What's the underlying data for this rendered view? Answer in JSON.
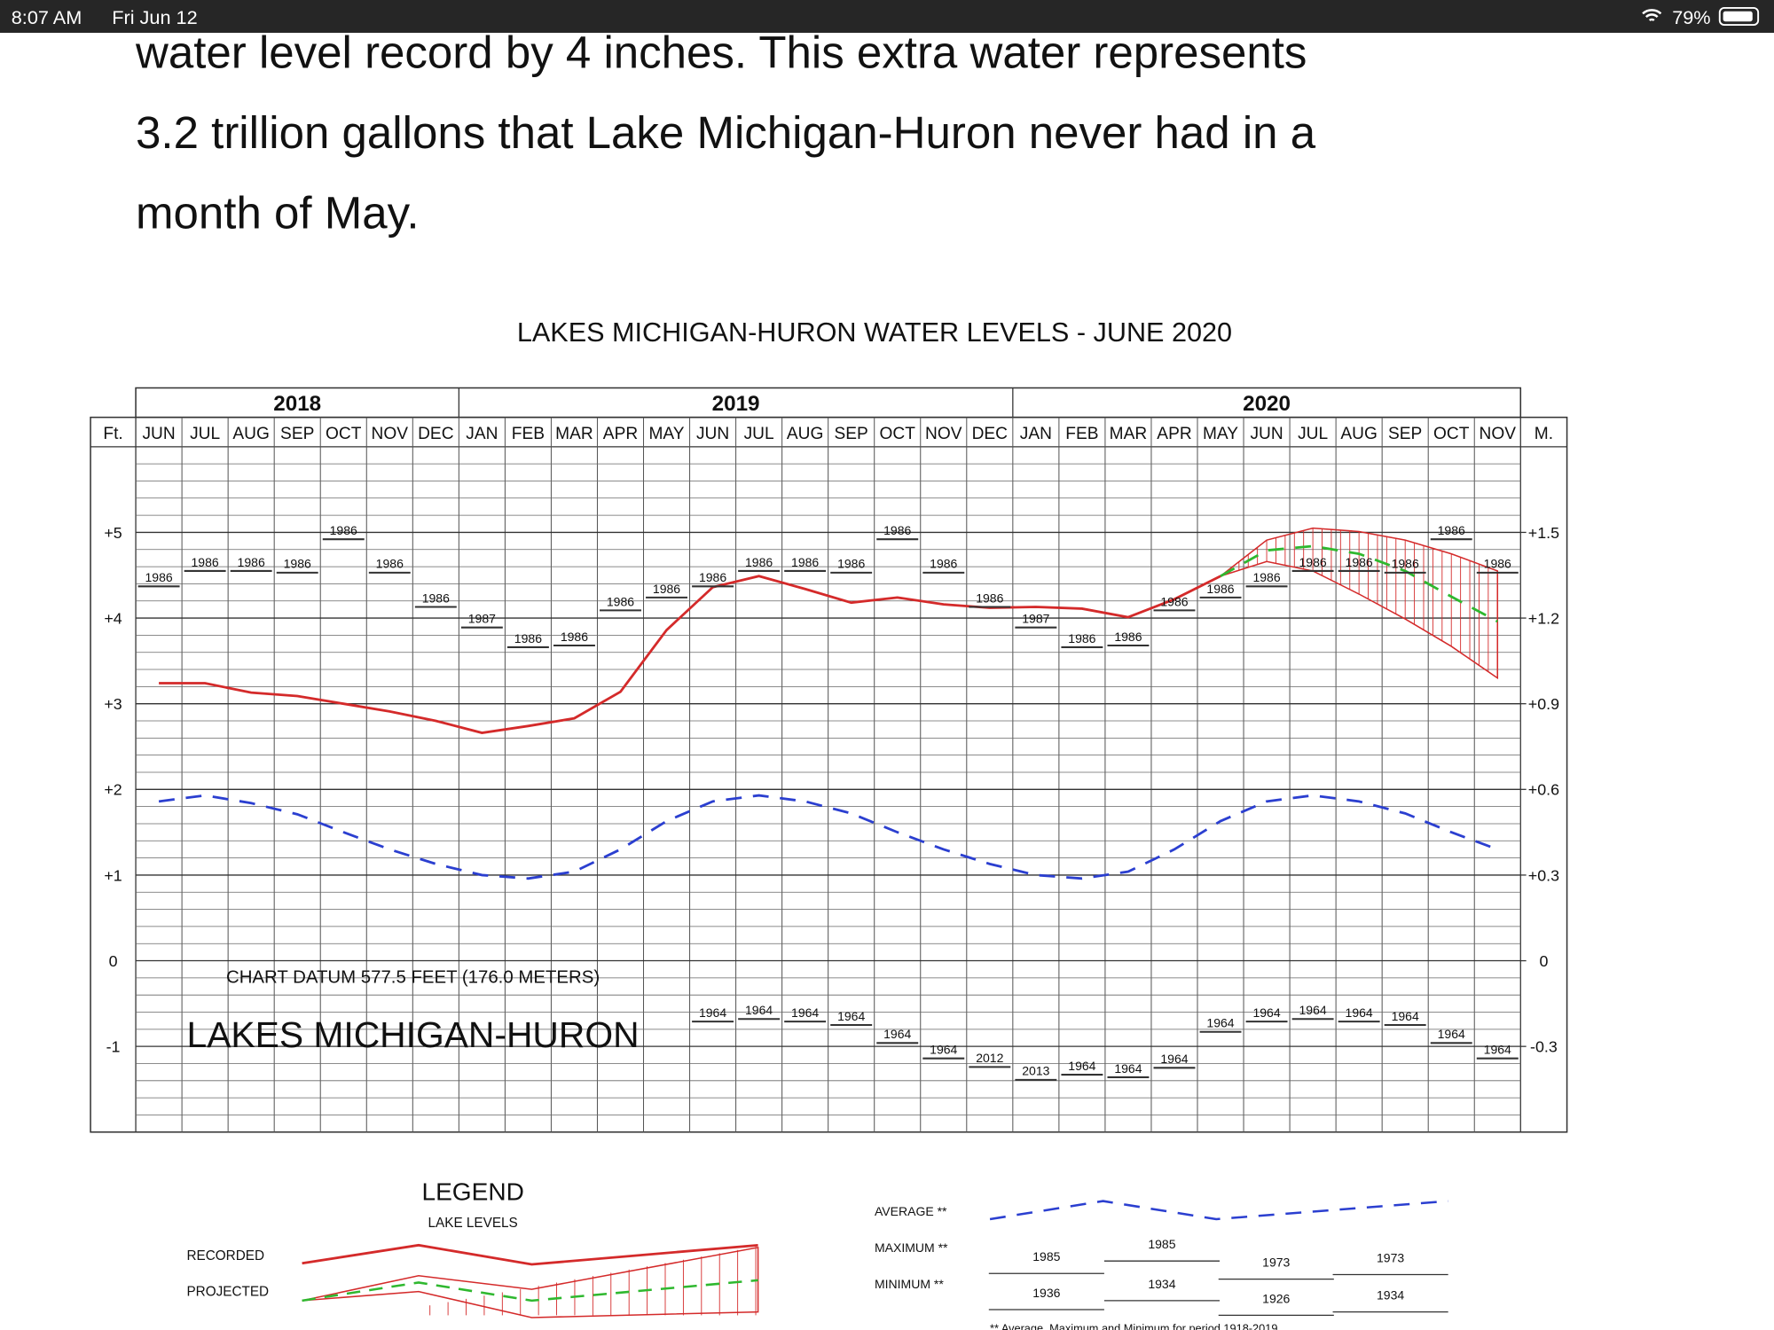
{
  "status_bar": {
    "time": "8:07 AM",
    "date": "Fri Jun 12",
    "battery": "79%"
  },
  "article": {
    "lines": [
      "water level record by 4 inches. This extra water represents",
      "3.2 trillion gallons that Lake Michigan-Huron never had in a",
      "month of May."
    ]
  },
  "chart_data": {
    "type": "line",
    "title": "LAKES MICHIGAN-HURON WATER LEVELS - JUNE 2020",
    "years": [
      {
        "label": "2018",
        "months": 7
      },
      {
        "label": "2019",
        "months": 12
      },
      {
        "label": "2020",
        "months": 11
      }
    ],
    "categories": [
      "JUN",
      "JUL",
      "AUG",
      "SEP",
      "OCT",
      "NOV",
      "DEC",
      "JAN",
      "FEB",
      "MAR",
      "APR",
      "MAY",
      "JUN",
      "JUL",
      "AUG",
      "SEP",
      "OCT",
      "NOV",
      "DEC",
      "JAN",
      "FEB",
      "MAR",
      "APR",
      "MAY",
      "JUN",
      "JUL",
      "AUG",
      "SEP",
      "OCT",
      "NOV"
    ],
    "y_label": "Ft.",
    "y2_label": "M.",
    "ylim": [
      -2,
      6
    ],
    "yticks": [
      {
        "value": 5,
        "label": "+5"
      },
      {
        "value": 4,
        "label": "+4"
      },
      {
        "value": 3,
        "label": "+3"
      },
      {
        "value": 2,
        "label": "+2"
      },
      {
        "value": 1,
        "label": "+1"
      },
      0,
      -1
    ],
    "y2lim": [
      -0.6096,
      1.8288
    ],
    "y2ticks": [
      {
        "value": 1.524,
        "label": "+1.5"
      },
      {
        "value": 1.2192,
        "label": "+1.2"
      },
      {
        "value": 0.9144,
        "label": "+0.9"
      },
      {
        "value": 0.6096,
        "label": "+0.6"
      },
      {
        "value": 0.3048,
        "label": "+0.3"
      },
      0,
      {
        "value": -0.3048,
        "label": "-0.3"
      }
    ],
    "grid": true,
    "annotations": [
      "CHART DATUM 577.5 FEET (176.0 METERS)",
      "LAKES MICHIGAN-HURON"
    ],
    "series": [
      {
        "name": "RECORDED",
        "color": "#d42a2a",
        "dash": false,
        "values": [
          3.24,
          3.24,
          3.13,
          3.09,
          3.0,
          2.91,
          2.8,
          2.66,
          2.74,
          2.83,
          3.14,
          3.86,
          4.36,
          4.49,
          4.34,
          4.18,
          4.24,
          4.16,
          4.12,
          4.13,
          4.11,
          4.01,
          4.22,
          4.49,
          null,
          null,
          null,
          null,
          null,
          null
        ]
      },
      {
        "name": "PROJECTED",
        "color": "#2fb82f",
        "dash": true,
        "values": [
          null,
          null,
          null,
          null,
          null,
          null,
          null,
          null,
          null,
          null,
          null,
          null,
          null,
          null,
          null,
          null,
          null,
          null,
          null,
          null,
          null,
          null,
          null,
          4.49,
          4.79,
          4.84,
          4.75,
          4.55,
          4.25,
          3.96
        ],
        "range_color": "#d42a2a",
        "range_high": [
          null,
          null,
          null,
          null,
          null,
          null,
          null,
          null,
          null,
          null,
          null,
          null,
          null,
          null,
          null,
          null,
          null,
          null,
          null,
          null,
          null,
          null,
          null,
          4.49,
          4.91,
          5.05,
          5.01,
          4.91,
          4.75,
          4.55
        ],
        "range_low": [
          null,
          null,
          null,
          null,
          null,
          null,
          null,
          null,
          null,
          null,
          null,
          null,
          null,
          null,
          null,
          null,
          null,
          null,
          null,
          null,
          null,
          null,
          null,
          4.49,
          4.66,
          4.55,
          4.28,
          3.99,
          3.67,
          3.3
        ]
      },
      {
        "name": "AVERAGE **",
        "color": "#2b3fd0",
        "dash": true,
        "values": [
          1.86,
          1.93,
          1.84,
          1.71,
          1.5,
          1.3,
          1.13,
          1.0,
          0.96,
          1.04,
          1.3,
          1.63,
          1.86,
          1.93,
          1.86,
          1.72,
          1.5,
          1.3,
          1.13,
          1.0,
          0.96,
          1.04,
          1.3,
          1.63,
          1.86,
          1.93,
          1.86,
          1.72,
          1.5,
          1.3
        ]
      },
      {
        "name": "MAXIMUM **",
        "color": "#333333",
        "marker": "record",
        "values": [
          4.37,
          4.55,
          4.55,
          4.53,
          4.92,
          4.53,
          4.13,
          3.89,
          3.66,
          3.68,
          4.09,
          4.24,
          4.37,
          4.55,
          4.55,
          4.53,
          4.92,
          4.53,
          4.13,
          3.89,
          3.66,
          3.68,
          4.09,
          4.24,
          4.37,
          4.55,
          4.55,
          4.53,
          4.92,
          4.53
        ],
        "years": [
          "1986",
          "1986",
          "1986",
          "1986",
          "1986",
          "1986",
          "1986",
          "1987",
          "1986",
          "1986",
          "1986",
          "1986",
          "1986",
          "1986",
          "1986",
          "1986",
          "1986",
          "1986",
          "1986",
          "1987",
          "1986",
          "1986",
          "1986",
          "1986",
          "1986",
          "1986",
          "1986",
          "1986",
          "1986",
          "1986"
        ]
      },
      {
        "name": "MINIMUM **",
        "color": "#333333",
        "marker": "record",
        "values": [
          null,
          null,
          null,
          null,
          null,
          null,
          null,
          null,
          null,
          null,
          null,
          null,
          -0.71,
          -0.68,
          -0.71,
          -0.75,
          -0.96,
          -1.14,
          -1.24,
          -1.39,
          -1.33,
          -1.36,
          -1.25,
          -0.83,
          -0.71,
          -0.68,
          -0.71,
          -0.75,
          -0.96,
          -1.14
        ],
        "years": [
          null,
          null,
          null,
          null,
          null,
          null,
          null,
          null,
          null,
          null,
          null,
          null,
          "1964",
          "1964",
          "1964",
          "1964",
          "1964",
          "1964",
          "2012",
          "2013",
          "1964",
          "1964",
          "1964",
          "1964",
          "1964",
          "1964",
          "1964",
          "1964",
          "1964",
          "1964"
        ]
      }
    ]
  },
  "legend": {
    "title": "LEGEND",
    "subtitle": "LAKE LEVELS",
    "max_years": [
      "1985",
      "1985",
      "1973",
      "1973"
    ],
    "min_years": [
      "1936",
      "1934",
      "1926",
      "1934"
    ],
    "footnote": "** Average, Maximum and Minimum for period 1918-2019"
  }
}
